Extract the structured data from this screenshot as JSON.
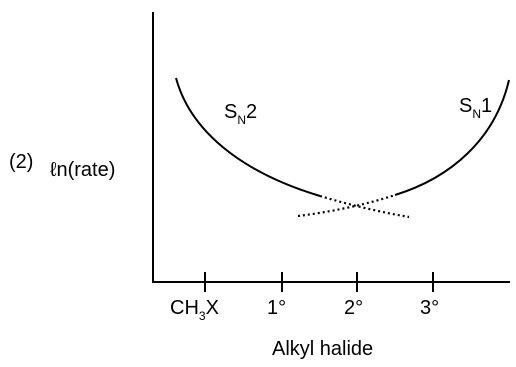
{
  "question_number": "(2)",
  "y_axis_label": "ℓn(rate)",
  "x_axis_label": "Alkyl halide",
  "curve_labels": {
    "sn2": {
      "main": "S",
      "sub": "N",
      "suffix": "2"
    },
    "sn1": {
      "main": "S",
      "sub": "N",
      "suffix": "1"
    }
  },
  "x_ticks": [
    {
      "main": "CH",
      "sub": "3",
      "suffix": "X"
    },
    {
      "main": "1°",
      "sub": "",
      "suffix": ""
    },
    {
      "main": "2°",
      "sub": "",
      "suffix": ""
    },
    {
      "main": "3°",
      "sub": "",
      "suffix": ""
    }
  ],
  "colors": {
    "ink": "#000000",
    "background": "#ffffff"
  }
}
